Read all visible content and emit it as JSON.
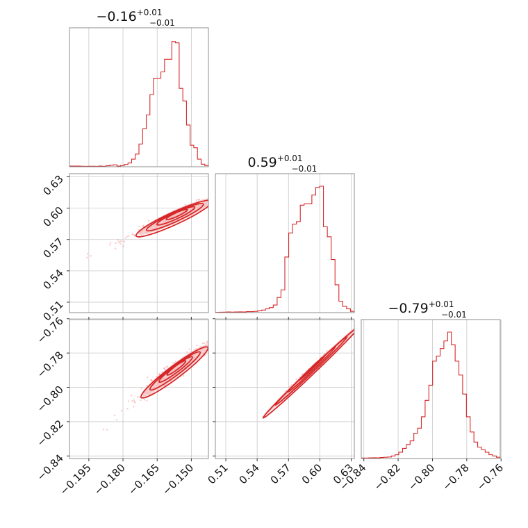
{
  "chart_data": {
    "type": "corner",
    "color": "#d62728",
    "parameters": [
      {
        "range": [
          -0.2035,
          -0.1425
        ],
        "ticks": [
          -0.195,
          -0.18,
          -0.165,
          -0.15
        ],
        "tick_labels": [
          "−0.195",
          "−0.180",
          "−0.165",
          "−0.150"
        ],
        "title": {
          "value": "−0.16",
          "plus": "+0.01",
          "minus": "−0.01"
        },
        "hist": [
          0.005,
          0.005,
          0.005,
          0.004,
          0.003,
          0.004,
          0.004,
          0.003,
          0.005,
          0.003,
          0.008,
          0.012,
          0.015,
          0.005,
          0.01,
          0.018,
          0.03,
          0.06,
          0.1,
          0.18,
          0.3,
          0.41,
          0.57,
          0.7,
          0.7,
          0.75,
          0.85,
          0.85,
          0.99,
          0.98,
          0.62,
          0.52,
          0.33,
          0.17,
          0.15,
          0.06,
          0.02,
          0.01
        ]
      },
      {
        "range": [
          0.5,
          0.633
        ],
        "ticks": [
          0.51,
          0.54,
          0.57,
          0.6,
          0.63
        ],
        "tick_labels": [
          "0.51",
          "0.54",
          "0.57",
          "0.60",
          "0.63"
        ],
        "title": {
          "value": "0.59",
          "plus": "+0.01",
          "minus": "−0.01"
        },
        "hist": [
          0.002,
          0.003,
          0.004,
          0.005,
          0.004,
          0.005,
          0.006,
          0.005,
          0.008,
          0.008,
          0.01,
          0.015,
          0.02,
          0.03,
          0.04,
          0.06,
          0.12,
          0.18,
          0.44,
          0.63,
          0.7,
          0.72,
          0.85,
          0.86,
          0.86,
          0.93,
          0.99,
          1.0,
          0.68,
          0.6,
          0.42,
          0.22,
          0.09,
          0.05,
          0.03,
          0.01
        ]
      },
      {
        "range": [
          -0.8415,
          -0.7605
        ],
        "ticks": [
          -0.84,
          -0.82,
          -0.8,
          -0.78,
          -0.76
        ],
        "tick_labels": [
          "−0.84",
          "−0.82",
          "−0.80",
          "−0.78",
          "−0.76"
        ],
        "title": {
          "value": "−0.79",
          "plus": "+0.01",
          "minus": "−0.01"
        },
        "hist": [
          0.004,
          0.004,
          0.005,
          0.006,
          0.005,
          0.008,
          0.01,
          0.012,
          0.02,
          0.03,
          0.05,
          0.08,
          0.11,
          0.14,
          0.2,
          0.24,
          0.33,
          0.46,
          0.58,
          0.77,
          0.81,
          0.87,
          0.93,
          1.0,
          0.9,
          0.77,
          0.66,
          0.51,
          0.33,
          0.21,
          0.13,
          0.09,
          0.07,
          0.05,
          0.03,
          0.02,
          0.01
        ]
      }
    ],
    "correlations": [
      {
        "i": 0,
        "j": 1,
        "slope": 1.0,
        "spread": 0.0025
      },
      {
        "i": 0,
        "j": 2,
        "slope": 1.0,
        "spread": 0.0025
      },
      {
        "i": 1,
        "j": 2,
        "slope": 0.6,
        "spread": 0.001
      }
    ],
    "grid": true
  }
}
